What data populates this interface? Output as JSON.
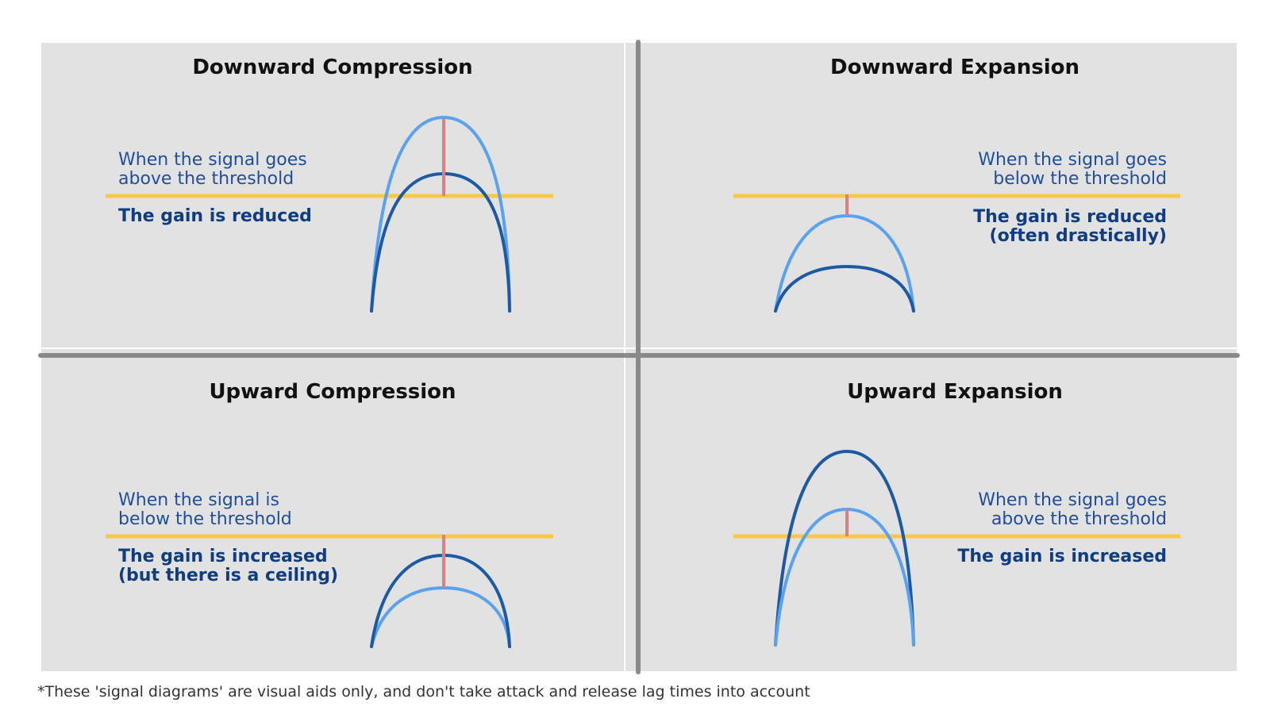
{
  "colors": {
    "panel_bg": "#e2e2e2",
    "divider": "#8a8a8a",
    "threshold": "#f7c948",
    "original_signal": "#5aa2f0",
    "processed_signal": "#1c5aa6",
    "gain_change_marker": "#d98080",
    "title_text": "#111111",
    "condition_text": "#1f4e9a",
    "effect_text": "#0f3d80"
  },
  "quadrants": [
    {
      "id": "downward-compression",
      "title": "Downward Compression",
      "condition": "When the signal goes\nabove the threshold",
      "effect": "The gain is reduced"
    },
    {
      "id": "downward-expansion",
      "title": "Downward Expansion",
      "condition": "When the signal goes\nbelow the threshold",
      "effect": "The gain is reduced\n(often drastically)"
    },
    {
      "id": "upward-compression",
      "title": "Upward Compression",
      "condition": "When the signal is\nbelow the threshold",
      "effect": "The gain is increased\n(but there is a ceiling)"
    },
    {
      "id": "upward-expansion",
      "title": "Upward Expansion",
      "condition": "When the signal goes\nabove the threshold",
      "effect": "The gain is increased"
    }
  ],
  "footnote": "*These 'signal diagrams' are visual aids only, and don't take attack and release lag times into account"
}
